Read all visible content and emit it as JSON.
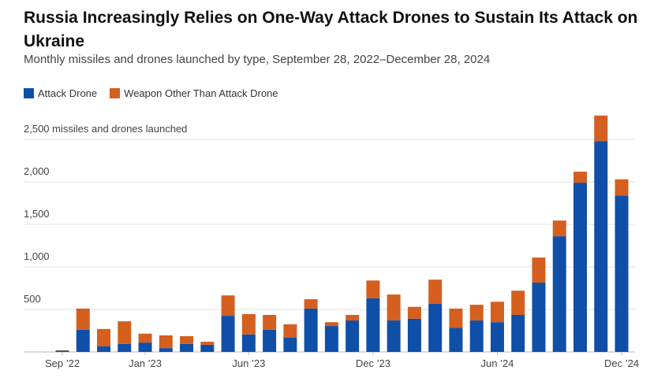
{
  "chart_data": {
    "type": "stacked_bar",
    "title": "Russia Increasingly Relies on One-Way Attack Drones to Sustain Its Attack on Ukraine",
    "subtitle": "Monthly missiles and drones launched by type, September 28, 2022–December 28, 2024",
    "categories": [
      "Sep ’22",
      null,
      null,
      null,
      "Jan ’23",
      null,
      null,
      null,
      null,
      "Jun ’23",
      null,
      null,
      null,
      null,
      null,
      "Dec ’23",
      null,
      null,
      null,
      null,
      null,
      "Jun ’24",
      null,
      null,
      null,
      null,
      null,
      "Dec ’24"
    ],
    "series": [
      {
        "name": "Attack Drone",
        "color": "#0f4fa8",
        "values": [
          15,
          260,
          65,
          95,
          110,
          45,
          95,
          85,
          425,
          205,
          260,
          170,
          510,
          305,
          370,
          630,
          370,
          390,
          565,
          285,
          370,
          350,
          435,
          815,
          1360,
          1990,
          2480,
          1840
        ]
      },
      {
        "name": "Weapon Other Than Attack Drone",
        "color": "#d45f1f",
        "values": [
          5,
          250,
          205,
          265,
          105,
          150,
          90,
          35,
          240,
          240,
          175,
          155,
          110,
          45,
          65,
          210,
          305,
          140,
          285,
          225,
          185,
          240,
          285,
          295,
          185,
          130,
          300,
          190
        ]
      }
    ],
    "ylim": [
      0,
      2800
    ],
    "yticks": [
      500,
      {
        "value": 1000,
        "label": "1,000"
      },
      {
        "value": 1500,
        "label": "1,500"
      },
      {
        "value": 2000,
        "label": "2,000"
      },
      {
        "value": 2500,
        "label": "2,500 missiles and drones launched"
      }
    ],
    "grid": true
  }
}
